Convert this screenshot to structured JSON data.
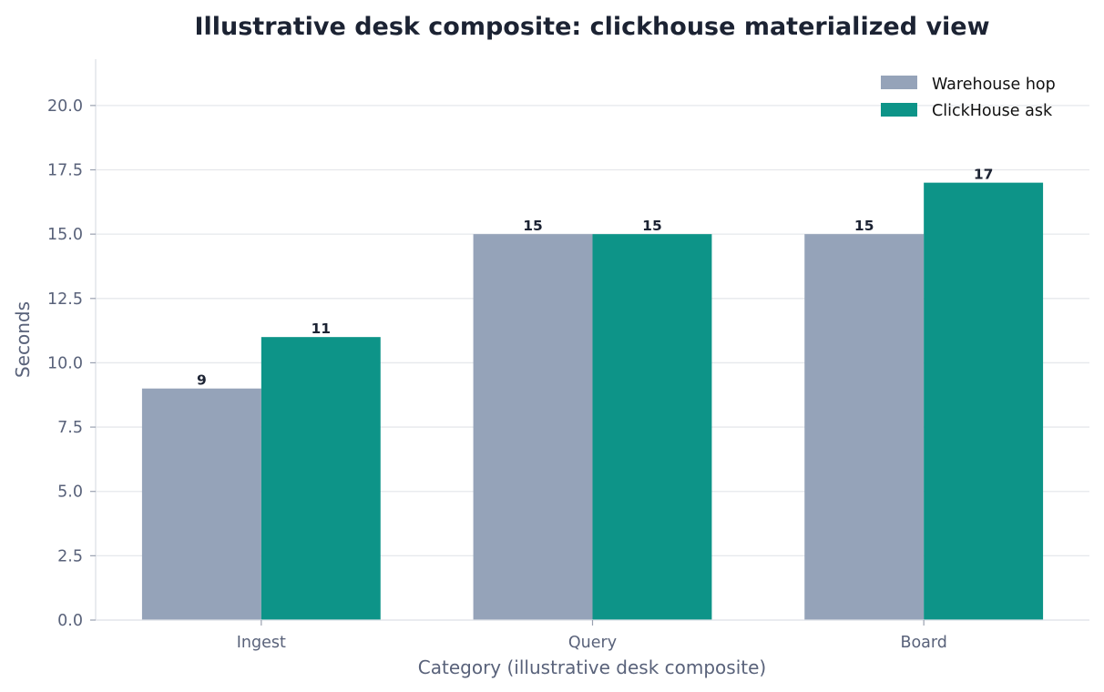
{
  "chart_data": {
    "type": "bar",
    "title": "Illustrative desk composite: clickhouse materialized view",
    "xlabel": "Category (illustrative desk composite)",
    "ylabel": "Seconds",
    "categories": [
      "Ingest",
      "Query",
      "Board"
    ],
    "series": [
      {
        "name": "Warehouse hop",
        "values": [
          9,
          15,
          15
        ],
        "color": "#95a3b9"
      },
      {
        "name": "ClickHouse ask",
        "values": [
          11,
          15,
          17
        ],
        "color": "#0d9488"
      }
    ],
    "ylim": [
      0,
      21.8
    ],
    "yticks": [
      "0.0",
      "2.5",
      "5.0",
      "7.5",
      "10.0",
      "12.5",
      "15.0",
      "17.5",
      "20.0"
    ],
    "grid": true,
    "legend": "top-right"
  }
}
